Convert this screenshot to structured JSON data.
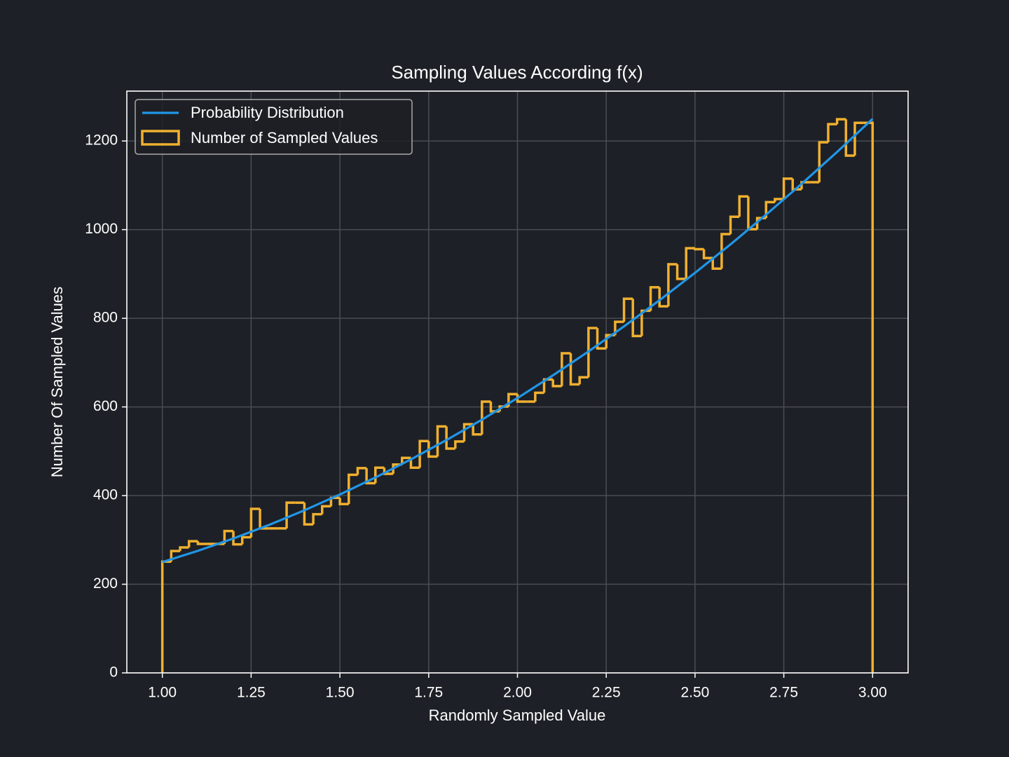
{
  "chart_data": {
    "type": "histogram",
    "title": "Sampling Values According f(x)",
    "x_label": "Randomly Sampled Value",
    "y_label": "Number Of Sampled Values",
    "xlim": [
      0.9,
      3.1
    ],
    "ylim": [
      0,
      1312.5
    ],
    "xticks": [
      {
        "value": 1,
        "label": "1.00"
      },
      {
        "value": 1.25,
        "label": "1.25"
      },
      {
        "value": 1.5,
        "label": "1.50"
      },
      {
        "value": 1.75,
        "label": "1.75"
      },
      {
        "value": 2,
        "label": "2.00"
      },
      {
        "value": 2.25,
        "label": "2.25"
      },
      {
        "value": 2.5,
        "label": "2.50"
      },
      {
        "value": 2.75,
        "label": "2.75"
      },
      {
        "value": 3,
        "label": "3.00"
      }
    ],
    "yticks": [
      0,
      200,
      400,
      600,
      800,
      1000,
      1200
    ],
    "grid": true,
    "legend": "upper left",
    "histogram": {
      "name": "Number of Sampled Values",
      "color": "#f0b030",
      "bins": [
        1,
        1.025,
        1.05,
        1.075,
        1.1,
        1.125,
        1.15,
        1.175,
        1.2,
        1.225,
        1.25,
        1.275,
        1.3,
        1.325,
        1.35,
        1.375,
        1.4,
        1.425,
        1.45,
        1.475,
        1.5,
        1.525,
        1.55,
        1.575,
        1.6,
        1.625,
        1.65,
        1.675,
        1.7,
        1.725,
        1.75,
        1.775,
        1.8,
        1.825,
        1.85,
        1.875,
        1.9,
        1.925,
        1.95,
        1.975,
        2,
        2.025,
        2.05,
        2.075,
        2.1,
        2.125,
        2.15,
        2.175,
        2.2,
        2.225,
        2.25,
        2.275,
        2.3,
        2.325,
        2.35,
        2.375,
        2.4,
        2.425,
        2.45,
        2.475,
        2.5,
        2.525,
        2.55,
        2.575,
        2.6,
        2.625,
        2.65,
        2.675,
        2.7,
        2.725,
        2.75,
        2.775,
        2.8,
        2.825,
        2.85,
        2.875,
        2.9,
        2.925,
        2.95,
        2.975,
        3
      ],
      "counts": [
        251,
        275,
        283,
        297,
        291,
        291,
        291,
        320,
        290,
        306,
        370,
        326,
        326,
        326,
        384,
        384,
        335,
        358,
        376,
        395,
        381,
        447,
        462,
        428,
        463,
        449,
        470,
        485,
        463,
        523,
        488,
        556,
        506,
        522,
        561,
        538,
        612,
        590,
        601,
        629,
        612,
        612,
        632,
        662,
        647,
        721,
        651,
        667,
        778,
        732,
        762,
        792,
        844,
        760,
        817,
        870,
        827,
        922,
        889,
        958,
        956,
        936,
        912,
        990,
        1029,
        1075,
        1001,
        1026,
        1062,
        1069,
        1115,
        1091,
        1107,
        1107,
        1197,
        1238,
        1249,
        1167,
        1241,
        1241
      ]
    },
    "line": {
      "name": "Probability Distribution",
      "color": "#2196e8",
      "x": [
        1,
        1.1,
        1.2,
        1.3,
        1.4,
        1.5,
        1.6,
        1.7,
        1.8,
        1.9,
        2,
        2.1,
        2.2,
        2.3,
        2.4,
        2.5,
        2.6,
        2.7,
        2.8,
        2.9,
        3
      ],
      "values": [
        250,
        275.3,
        303.2,
        333.7,
        366.8,
        402.5,
        440.8,
        481.7,
        525.2,
        571.3,
        620,
        671.3,
        725.2,
        781.7,
        840.8,
        902.5,
        966.8,
        1033.7,
        1103.2,
        1175.3,
        1250
      ]
    }
  }
}
